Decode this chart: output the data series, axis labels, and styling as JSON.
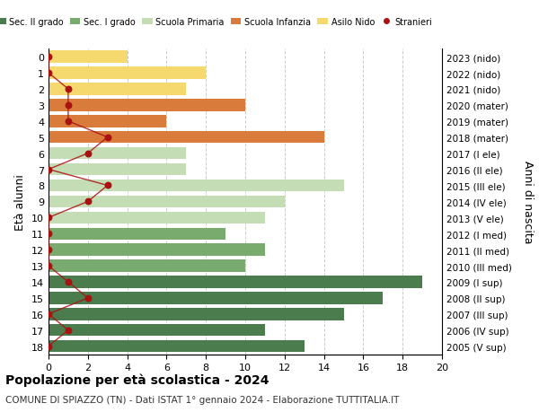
{
  "ages": [
    18,
    17,
    16,
    15,
    14,
    13,
    12,
    11,
    10,
    9,
    8,
    7,
    6,
    5,
    4,
    3,
    2,
    1,
    0
  ],
  "years": [
    "2005 (V sup)",
    "2006 (IV sup)",
    "2007 (III sup)",
    "2008 (II sup)",
    "2009 (I sup)",
    "2010 (III med)",
    "2011 (II med)",
    "2012 (I med)",
    "2013 (V ele)",
    "2014 (IV ele)",
    "2015 (III ele)",
    "2016 (II ele)",
    "2017 (I ele)",
    "2018 (mater)",
    "2019 (mater)",
    "2020 (mater)",
    "2021 (nido)",
    "2022 (nido)",
    "2023 (nido)"
  ],
  "bar_values": [
    13,
    11,
    15,
    17,
    19,
    10,
    11,
    9,
    11,
    12,
    15,
    7,
    7,
    14,
    6,
    10,
    7,
    8,
    4
  ],
  "bar_colors": [
    "#4a7c4e",
    "#4a7c4e",
    "#4a7c4e",
    "#4a7c4e",
    "#4a7c4e",
    "#7aab6e",
    "#7aab6e",
    "#7aab6e",
    "#c5ddb5",
    "#c5ddb5",
    "#c5ddb5",
    "#c5ddb5",
    "#c5ddb5",
    "#d97b3a",
    "#d97b3a",
    "#d97b3a",
    "#f5d96e",
    "#f5d96e",
    "#f5d96e"
  ],
  "stranieri_values": [
    0,
    1,
    0,
    2,
    1,
    0,
    0,
    0,
    0,
    2,
    3,
    0,
    2,
    3,
    1,
    1,
    1,
    0,
    0
  ],
  "legend_labels": [
    "Sec. II grado",
    "Sec. I grado",
    "Scuola Primaria",
    "Scuola Infanzia",
    "Asilo Nido",
    "Stranieri"
  ],
  "legend_colors": [
    "#4a7c4e",
    "#7aab6e",
    "#c5ddb5",
    "#d97b3a",
    "#f5d96e",
    "#aa1111"
  ],
  "stranieri_color": "#aa1111",
  "stranieri_line_color": "#aa1111",
  "ylabel_left": "Età alunni",
  "ylabel_right": "Anni di nascita",
  "title_bold": "Popolazione per età scolastica - 2024",
  "subtitle": "COMUNE DI SPIAZZO (TN) - Dati ISTAT 1° gennaio 2024 - Elaborazione TUTTITALIA.IT",
  "xlim": [
    0,
    20
  ],
  "xticks": [
    0,
    2,
    4,
    6,
    8,
    10,
    12,
    14,
    16,
    18,
    20
  ],
  "background_color": "#ffffff",
  "grid_color": "#cccccc",
  "bar_height": 0.75
}
